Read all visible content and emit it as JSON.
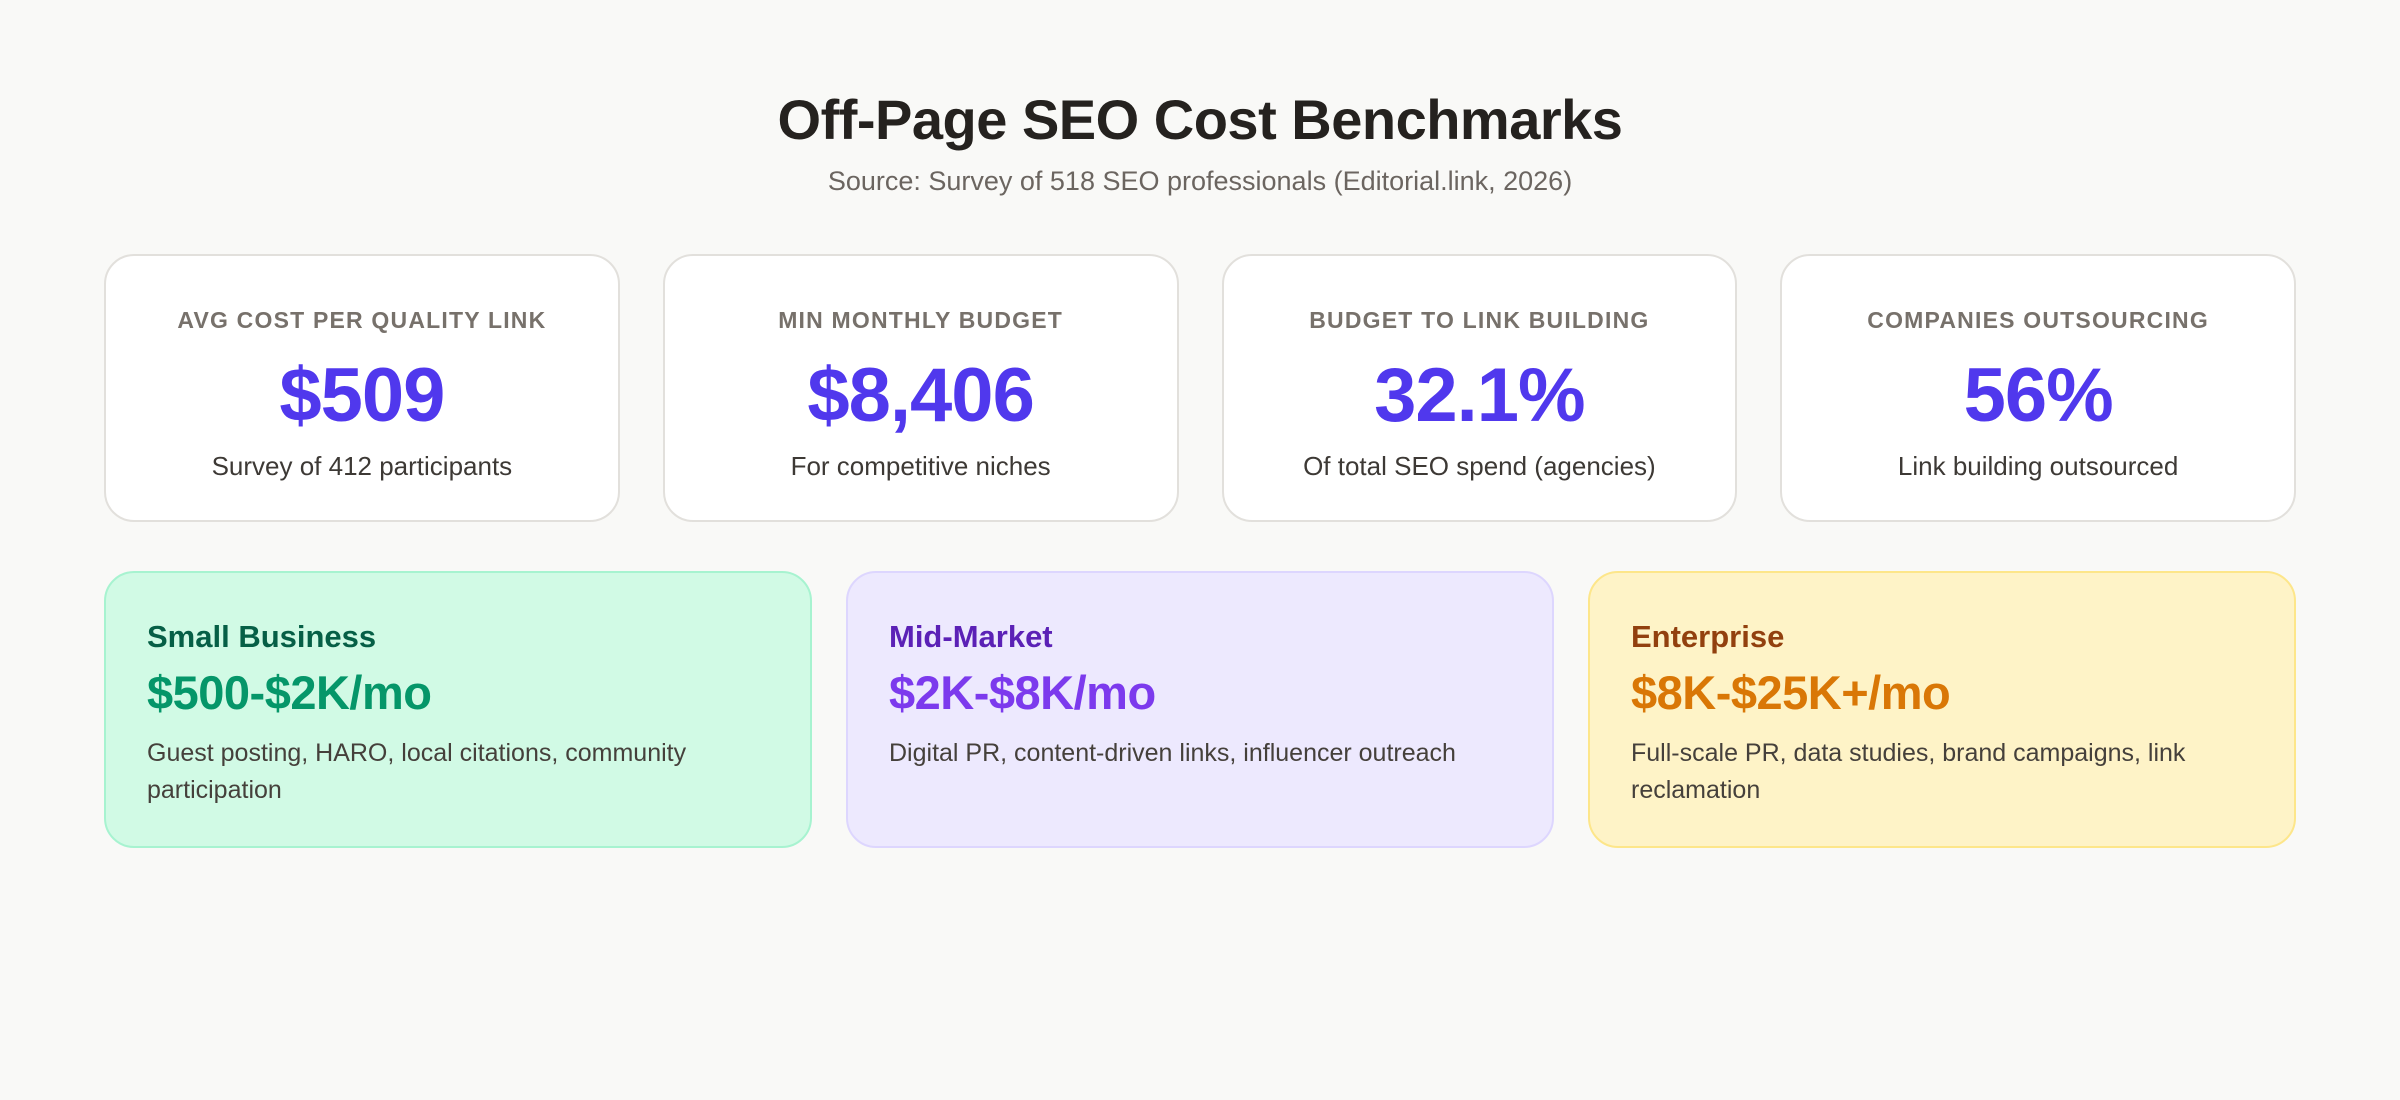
{
  "header": {
    "title": "Off-Page SEO Cost Benchmarks",
    "subtitle": "Source: Survey of 518 SEO professionals (Editorial.link, 2026)"
  },
  "stats": [
    {
      "label": "AVG COST PER QUALITY LINK",
      "value": "$509",
      "note": "Survey of 412 participants"
    },
    {
      "label": "MIN MONTHLY BUDGET",
      "value": "$8,406",
      "note": "For competitive niches"
    },
    {
      "label": "BUDGET TO LINK BUILDING",
      "value": "32.1%",
      "note": "Of total SEO spend (agencies)"
    },
    {
      "label": "COMPANIES OUTSOURCING",
      "value": "56%",
      "note": "Link building outsourced"
    }
  ],
  "tiers": [
    {
      "name": "Small Business",
      "price": "$500-$2K/mo",
      "description": "Guest posting, HARO, local citations, community participation"
    },
    {
      "name": "Mid-Market",
      "price": "$2K-$8K/mo",
      "description": "Digital PR, content-driven links, influencer outreach"
    },
    {
      "name": "Enterprise",
      "price": "$8K-$25K+/mo",
      "description": "Full-scale PR, data studies, brand campaigns, link reclamation"
    }
  ]
}
